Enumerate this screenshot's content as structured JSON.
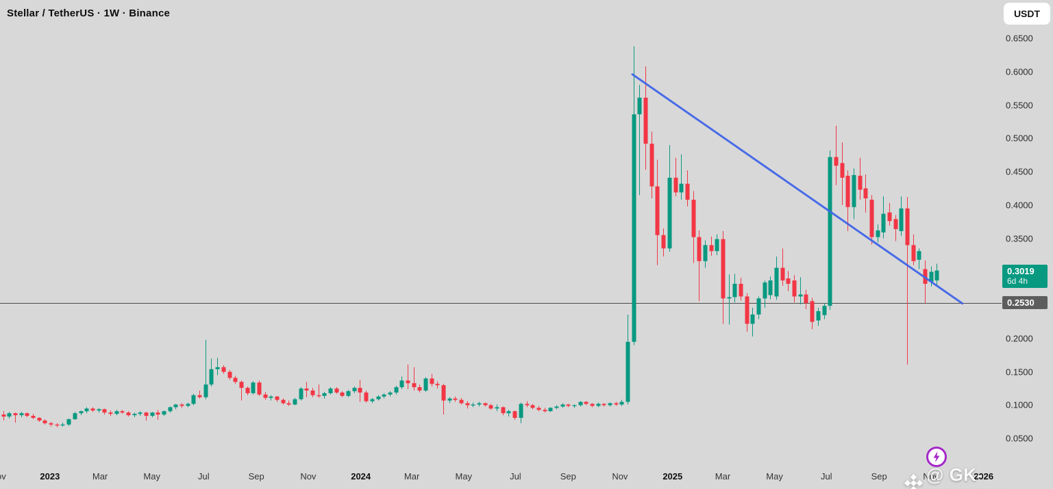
{
  "header": {
    "title": "Stellar / TetherUS · 1W · Binance",
    "currency_button": "USDT"
  },
  "watermark": {
    "text": "@ GK-ARONNO"
  },
  "price_axis": {
    "labels": [
      {
        "text": "0.6500",
        "value": 0.65
      },
      {
        "text": "0.6000",
        "value": 0.6
      },
      {
        "text": "0.5500",
        "value": 0.55
      },
      {
        "text": "0.5000",
        "value": 0.5
      },
      {
        "text": "0.4500",
        "value": 0.45
      },
      {
        "text": "0.4000",
        "value": 0.4
      },
      {
        "text": "0.3500",
        "value": 0.35
      },
      {
        "text": "0.2000",
        "value": 0.2
      },
      {
        "text": "0.1500",
        "value": 0.15
      },
      {
        "text": "0.1000",
        "value": 0.1
      },
      {
        "text": "0.0500",
        "value": 0.05
      }
    ],
    "current_price_badge": {
      "price": "0.3019",
      "countdown": "6d 4h",
      "color": "#089981"
    },
    "level_badge": {
      "price": "0.2530",
      "color": "#5d5d5d"
    }
  },
  "time_axis": {
    "labels": [
      {
        "text": "Nov",
        "week": 0.14,
        "year": false
      },
      {
        "text": "2023",
        "week": 8.86,
        "year": true
      },
      {
        "text": "Mar",
        "week": 17.29,
        "year": false
      },
      {
        "text": "May",
        "week": 26.0,
        "year": false
      },
      {
        "text": "Jul",
        "week": 34.71,
        "year": false
      },
      {
        "text": "Sep",
        "week": 43.57,
        "year": false
      },
      {
        "text": "Nov",
        "week": 52.29,
        "year": false
      },
      {
        "text": "2024",
        "week": 61.14,
        "year": true
      },
      {
        "text": "Mar",
        "week": 69.71,
        "year": false
      },
      {
        "text": "May",
        "week": 78.43,
        "year": false
      },
      {
        "text": "Jul",
        "week": 87.14,
        "year": false
      },
      {
        "text": "Sep",
        "week": 96.0,
        "year": false
      },
      {
        "text": "Nov",
        "week": 104.71,
        "year": false
      },
      {
        "text": "2025",
        "week": 113.57,
        "year": true
      },
      {
        "text": "Mar",
        "week": 122.0,
        "year": false
      },
      {
        "text": "May",
        "week": 130.71,
        "year": false
      },
      {
        "text": "Jul",
        "week": 139.43,
        "year": false
      },
      {
        "text": "Sep",
        "week": 148.29,
        "year": false
      },
      {
        "text": "Nov",
        "week": 157.0,
        "year": false
      },
      {
        "text": "2026",
        "week": 165.86,
        "year": true
      }
    ]
  },
  "colors": {
    "background": "#d8d8d8",
    "up": "#089981",
    "down": "#f23645",
    "trendline": "#4166e8",
    "level_line": "#4a4a4a",
    "badge_current": "#089981",
    "badge_level": "#5d5d5d",
    "lightning": "#a428c8"
  },
  "chart_data": {
    "type": "candlestick",
    "title": "Stellar / TetherUS · 1W · Binance",
    "symbol": "Stellar / TetherUS",
    "interval": "1W",
    "exchange": "Binance",
    "quote_currency": "USDT",
    "last_price": 0.3019,
    "bar_countdown": "6d 4h",
    "ylim": [
      0.03,
      0.68
    ],
    "y_tick_step": 0.05,
    "grid": false,
    "horizontal_level": 0.253,
    "trendline": {
      "from_week": 106.8,
      "from_price": 0.596,
      "to_week": 162.3,
      "to_price": 0.2525
    },
    "x_axis_note": "weekly bars, week 0 = leftmost bar (Nov 2022) through week 158 = current bar (Nov 2025)",
    "candles_ohlc": [
      [
        0.105,
        0.11,
        0.083,
        0.086
      ],
      [
        0.086,
        0.091,
        0.077,
        0.083
      ],
      [
        0.083,
        0.09,
        0.08,
        0.088
      ],
      [
        0.088,
        0.089,
        0.074,
        0.085
      ],
      [
        0.085,
        0.09,
        0.082,
        0.088
      ],
      [
        0.088,
        0.089,
        0.082,
        0.084
      ],
      [
        0.084,
        0.087,
        0.079,
        0.081
      ],
      [
        0.081,
        0.082,
        0.075,
        0.077
      ],
      [
        0.077,
        0.079,
        0.071,
        0.073
      ],
      [
        0.073,
        0.075,
        0.068,
        0.071
      ],
      [
        0.071,
        0.073,
        0.067,
        0.07
      ],
      [
        0.07,
        0.074,
        0.068,
        0.071
      ],
      [
        0.071,
        0.08,
        0.069,
        0.079
      ],
      [
        0.079,
        0.09,
        0.078,
        0.088
      ],
      [
        0.088,
        0.092,
        0.085,
        0.091
      ],
      [
        0.091,
        0.097,
        0.088,
        0.095
      ],
      [
        0.095,
        0.097,
        0.09,
        0.092
      ],
      [
        0.092,
        0.096,
        0.089,
        0.094
      ],
      [
        0.094,
        0.095,
        0.086,
        0.089
      ],
      [
        0.089,
        0.092,
        0.084,
        0.087
      ],
      [
        0.087,
        0.093,
        0.085,
        0.091
      ],
      [
        0.091,
        0.093,
        0.087,
        0.089
      ],
      [
        0.089,
        0.091,
        0.083,
        0.085
      ],
      [
        0.085,
        0.089,
        0.082,
        0.087
      ],
      [
        0.087,
        0.091,
        0.084,
        0.089
      ],
      [
        0.089,
        0.09,
        0.077,
        0.084
      ],
      [
        0.084,
        0.09,
        0.082,
        0.089
      ],
      [
        0.089,
        0.093,
        0.078,
        0.086
      ],
      [
        0.086,
        0.092,
        0.084,
        0.091
      ],
      [
        0.091,
        0.098,
        0.089,
        0.097
      ],
      [
        0.097,
        0.102,
        0.094,
        0.101
      ],
      [
        0.101,
        0.103,
        0.096,
        0.099
      ],
      [
        0.099,
        0.104,
        0.097,
        0.102
      ],
      [
        0.102,
        0.117,
        0.1,
        0.115
      ],
      [
        0.115,
        0.122,
        0.11,
        0.112
      ],
      [
        0.112,
        0.198,
        0.109,
        0.131
      ],
      [
        0.131,
        0.17,
        0.128,
        0.154
      ],
      [
        0.154,
        0.171,
        0.145,
        0.157
      ],
      [
        0.157,
        0.16,
        0.147,
        0.15
      ],
      [
        0.15,
        0.153,
        0.138,
        0.141
      ],
      [
        0.141,
        0.144,
        0.132,
        0.135
      ],
      [
        0.135,
        0.137,
        0.107,
        0.126
      ],
      [
        0.126,
        0.128,
        0.115,
        0.118
      ],
      [
        0.118,
        0.136,
        0.116,
        0.134
      ],
      [
        0.134,
        0.137,
        0.114,
        0.116
      ],
      [
        0.116,
        0.12,
        0.108,
        0.111
      ],
      [
        0.111,
        0.115,
        0.107,
        0.113
      ],
      [
        0.113,
        0.114,
        0.105,
        0.108
      ],
      [
        0.108,
        0.11,
        0.101,
        0.103
      ],
      [
        0.103,
        0.107,
        0.099,
        0.101
      ],
      [
        0.101,
        0.111,
        0.1,
        0.109
      ],
      [
        0.109,
        0.127,
        0.107,
        0.125
      ],
      [
        0.125,
        0.135,
        0.112,
        0.122
      ],
      [
        0.122,
        0.126,
        0.112,
        0.115
      ],
      [
        0.115,
        0.131,
        0.111,
        0.114
      ],
      [
        0.114,
        0.12,
        0.11,
        0.118
      ],
      [
        0.118,
        0.127,
        0.116,
        0.125
      ],
      [
        0.125,
        0.127,
        0.117,
        0.119
      ],
      [
        0.119,
        0.121,
        0.112,
        0.114
      ],
      [
        0.114,
        0.123,
        0.112,
        0.121
      ],
      [
        0.121,
        0.128,
        0.118,
        0.126
      ],
      [
        0.126,
        0.138,
        0.105,
        0.119
      ],
      [
        0.119,
        0.122,
        0.104,
        0.106
      ],
      [
        0.106,
        0.111,
        0.103,
        0.109
      ],
      [
        0.109,
        0.115,
        0.107,
        0.113
      ],
      [
        0.113,
        0.118,
        0.11,
        0.116
      ],
      [
        0.116,
        0.121,
        0.113,
        0.119
      ],
      [
        0.119,
        0.129,
        0.116,
        0.127
      ],
      [
        0.127,
        0.143,
        0.124,
        0.137
      ],
      [
        0.137,
        0.161,
        0.124,
        0.133
      ],
      [
        0.133,
        0.157,
        0.122,
        0.127
      ],
      [
        0.127,
        0.131,
        0.119,
        0.122
      ],
      [
        0.122,
        0.142,
        0.12,
        0.14
      ],
      [
        0.14,
        0.147,
        0.128,
        0.132
      ],
      [
        0.132,
        0.136,
        0.125,
        0.13
      ],
      [
        0.13,
        0.132,
        0.086,
        0.107
      ],
      [
        0.107,
        0.112,
        0.103,
        0.11
      ],
      [
        0.11,
        0.113,
        0.105,
        0.108
      ],
      [
        0.108,
        0.111,
        0.101,
        0.103
      ],
      [
        0.103,
        0.106,
        0.095,
        0.1
      ],
      [
        0.1,
        0.104,
        0.097,
        0.101
      ],
      [
        0.101,
        0.105,
        0.098,
        0.103
      ],
      [
        0.103,
        0.104,
        0.098,
        0.1
      ],
      [
        0.1,
        0.102,
        0.093,
        0.095
      ],
      [
        0.095,
        0.101,
        0.091,
        0.097
      ],
      [
        0.097,
        0.098,
        0.085,
        0.088
      ],
      [
        0.088,
        0.093,
        0.083,
        0.091
      ],
      [
        0.091,
        0.092,
        0.078,
        0.081
      ],
      [
        0.081,
        0.104,
        0.073,
        0.102
      ],
      [
        0.102,
        0.106,
        0.097,
        0.1
      ],
      [
        0.1,
        0.102,
        0.094,
        0.096
      ],
      [
        0.096,
        0.099,
        0.091,
        0.093
      ],
      [
        0.093,
        0.096,
        0.089,
        0.091
      ],
      [
        0.091,
        0.097,
        0.09,
        0.096
      ],
      [
        0.096,
        0.1,
        0.094,
        0.098
      ],
      [
        0.098,
        0.103,
        0.096,
        0.101
      ],
      [
        0.101,
        0.102,
        0.097,
        0.099
      ],
      [
        0.099,
        0.101,
        0.096,
        0.1
      ],
      [
        0.1,
        0.106,
        0.098,
        0.105
      ],
      [
        0.105,
        0.106,
        0.1,
        0.102
      ],
      [
        0.102,
        0.103,
        0.097,
        0.099
      ],
      [
        0.099,
        0.104,
        0.097,
        0.102
      ],
      [
        0.102,
        0.103,
        0.098,
        0.1
      ],
      [
        0.1,
        0.104,
        0.098,
        0.103
      ],
      [
        0.103,
        0.105,
        0.099,
        0.101
      ],
      [
        0.101,
        0.108,
        0.099,
        0.105
      ],
      [
        0.105,
        0.236,
        0.101,
        0.195
      ],
      [
        0.195,
        0.638,
        0.19,
        0.536
      ],
      [
        0.536,
        0.58,
        0.415,
        0.561
      ],
      [
        0.561,
        0.608,
        0.453,
        0.492
      ],
      [
        0.492,
        0.51,
        0.41,
        0.428
      ],
      [
        0.428,
        0.468,
        0.31,
        0.355
      ],
      [
        0.355,
        0.365,
        0.323,
        0.335
      ],
      [
        0.335,
        0.49,
        0.33,
        0.441
      ],
      [
        0.441,
        0.471,
        0.413,
        0.419
      ],
      [
        0.419,
        0.476,
        0.408,
        0.432
      ],
      [
        0.432,
        0.452,
        0.398,
        0.408
      ],
      [
        0.408,
        0.421,
        0.313,
        0.352
      ],
      [
        0.352,
        0.362,
        0.256,
        0.316
      ],
      [
        0.316,
        0.347,
        0.306,
        0.34
      ],
      [
        0.34,
        0.353,
        0.324,
        0.331
      ],
      [
        0.331,
        0.356,
        0.325,
        0.349
      ],
      [
        0.349,
        0.361,
        0.222,
        0.26
      ],
      [
        0.26,
        0.296,
        0.221,
        0.262
      ],
      [
        0.262,
        0.297,
        0.254,
        0.282
      ],
      [
        0.282,
        0.291,
        0.257,
        0.263
      ],
      [
        0.263,
        0.268,
        0.21,
        0.222
      ],
      [
        0.222,
        0.246,
        0.203,
        0.236
      ],
      [
        0.236,
        0.263,
        0.229,
        0.26
      ],
      [
        0.26,
        0.287,
        0.246,
        0.284
      ],
      [
        0.265,
        0.293,
        0.259,
        0.287
      ],
      [
        0.263,
        0.323,
        0.258,
        0.306
      ],
      [
        0.306,
        0.335,
        0.279,
        0.287
      ],
      [
        0.29,
        0.301,
        0.271,
        0.282
      ],
      [
        0.287,
        0.295,
        0.254,
        0.263
      ],
      [
        0.263,
        0.292,
        0.251,
        0.266
      ],
      [
        0.266,
        0.273,
        0.244,
        0.253
      ],
      [
        0.256,
        0.261,
        0.214,
        0.225
      ],
      [
        0.227,
        0.246,
        0.219,
        0.241
      ],
      [
        0.235,
        0.253,
        0.229,
        0.249
      ],
      [
        0.249,
        0.482,
        0.243,
        0.472
      ],
      [
        0.472,
        0.519,
        0.43,
        0.459
      ],
      [
        0.463,
        0.494,
        0.4,
        0.441
      ],
      [
        0.444,
        0.452,
        0.361,
        0.397
      ],
      [
        0.397,
        0.455,
        0.379,
        0.445
      ],
      [
        0.444,
        0.471,
        0.408,
        0.423
      ],
      [
        0.425,
        0.446,
        0.389,
        0.41
      ],
      [
        0.408,
        0.415,
        0.341,
        0.352
      ],
      [
        0.352,
        0.371,
        0.344,
        0.362
      ],
      [
        0.359,
        0.413,
        0.35,
        0.387
      ],
      [
        0.389,
        0.403,
        0.369,
        0.376
      ],
      [
        0.379,
        0.385,
        0.346,
        0.364
      ],
      [
        0.361,
        0.413,
        0.354,
        0.395
      ],
      [
        0.395,
        0.412,
        0.161,
        0.34
      ],
      [
        0.34,
        0.356,
        0.31,
        0.316
      ],
      [
        0.318,
        0.335,
        0.304,
        0.331
      ],
      [
        0.304,
        0.317,
        0.253,
        0.282
      ],
      [
        0.285,
        0.308,
        0.278,
        0.3
      ],
      [
        0.287,
        0.312,
        0.28,
        0.3019
      ]
    ]
  }
}
